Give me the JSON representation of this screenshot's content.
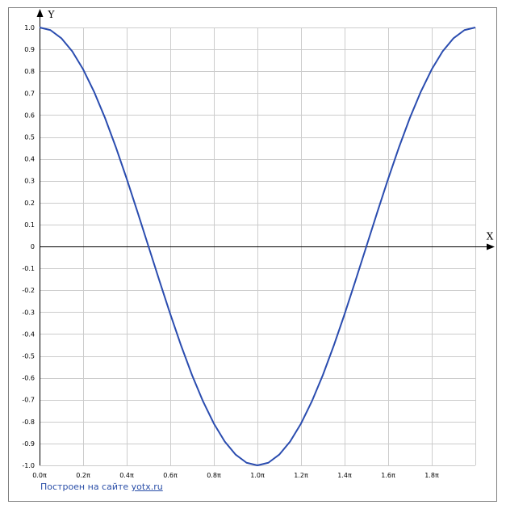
{
  "chart_data": {
    "type": "line",
    "x_axis_label": "X",
    "y_axis_label": "Y",
    "xlim": [
      0.0,
      2.0
    ],
    "ylim": [
      -1.0,
      1.0
    ],
    "x_unit": "π",
    "x_ticks": [
      0.0,
      0.2,
      0.4,
      0.6,
      0.8,
      1.0,
      1.2,
      1.4,
      1.6,
      1.8
    ],
    "x_tick_labels": [
      "0.0π",
      "0.2π",
      "0.4π",
      "0.6π",
      "0.8π",
      "1.0π",
      "1.2π",
      "1.4π",
      "1.6π",
      "1.8π"
    ],
    "y_ticks": [
      1.0,
      0.9,
      0.8,
      0.7,
      0.6,
      0.5,
      0.4,
      0.3,
      0.2,
      0.1,
      0,
      -0.1,
      -0.2,
      -0.3,
      -0.4,
      -0.5,
      -0.6,
      -0.7,
      -0.8,
      -0.9,
      -1.0
    ],
    "y_tick_labels": [
      "1.0",
      "0.9",
      "0.8",
      "0.7",
      "0.6",
      "0.5",
      "0.4",
      "0.3",
      "0.2",
      "0.1",
      "0",
      "-0.1",
      "-0.2",
      "-0.3",
      "-0.4",
      "-0.5",
      "-0.6",
      "-0.7",
      "-0.8",
      "-0.9",
      "-1.0"
    ],
    "grid": true,
    "series": [
      {
        "color": "#2a4caf",
        "x": [
          0.0,
          0.05,
          0.1,
          0.15,
          0.2,
          0.25,
          0.3,
          0.35,
          0.4,
          0.45,
          0.5,
          0.55,
          0.6,
          0.65,
          0.7,
          0.75,
          0.8,
          0.85,
          0.9,
          0.95,
          1.0,
          1.05,
          1.1,
          1.15,
          1.2,
          1.25,
          1.3,
          1.35,
          1.4,
          1.45,
          1.5,
          1.55,
          1.6,
          1.65,
          1.7,
          1.75,
          1.8,
          1.85,
          1.9,
          1.95,
          2.0
        ],
        "y": [
          1.0,
          0.988,
          0.951,
          0.891,
          0.809,
          0.707,
          0.588,
          0.454,
          0.309,
          0.156,
          0.0,
          -0.156,
          -0.309,
          -0.454,
          -0.588,
          -0.707,
          -0.809,
          -0.891,
          -0.951,
          -0.988,
          -1.0,
          -0.988,
          -0.951,
          -0.891,
          -0.809,
          -0.707,
          -0.588,
          -0.454,
          -0.309,
          -0.156,
          0.0,
          0.156,
          0.309,
          0.454,
          0.588,
          0.707,
          0.809,
          0.891,
          0.951,
          0.988,
          1.0
        ]
      }
    ]
  },
  "colors": {
    "grid": "#cccccc",
    "axis": "#000000",
    "frame": "#7f7f7f",
    "curve": "#2a4caf",
    "credit": "#2b4fa8"
  },
  "credit": {
    "text": "Построен на сайте",
    "link": "yotx.ru"
  }
}
